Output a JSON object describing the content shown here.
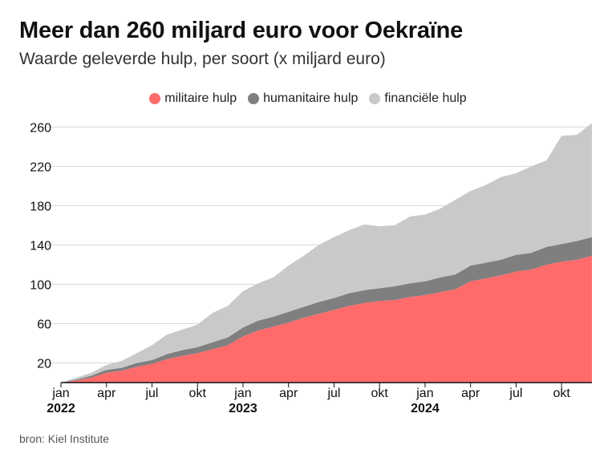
{
  "title": "Meer dan 260 miljard euro voor Oekraïne",
  "subtitle": "Waarde geleverde hulp, per soort (x miljard euro)",
  "source": "bron: Kiel Institute",
  "colors": {
    "militaire": "#ff6b6b",
    "humanitaire": "#7f7f7f",
    "financiele": "#c9c9c9",
    "grid": "#d9d9d9",
    "axis": "#111111"
  },
  "chart_data": {
    "type": "area",
    "stacked": true,
    "legend_position": "top-center",
    "grid": true,
    "y_ticks": [
      20,
      60,
      100,
      140,
      180,
      220,
      260
    ],
    "ylim": [
      0,
      275
    ],
    "x_ticks": [
      {
        "label": "jan",
        "year": "2022",
        "x": 0
      },
      {
        "label": "apr",
        "year": "",
        "x": 3
      },
      {
        "label": "jul",
        "year": "",
        "x": 6
      },
      {
        "label": "okt",
        "year": "",
        "x": 9
      },
      {
        "label": "jan",
        "year": "2023",
        "x": 12
      },
      {
        "label": "apr",
        "year": "",
        "x": 15
      },
      {
        "label": "jul",
        "year": "",
        "x": 18
      },
      {
        "label": "okt",
        "year": "",
        "x": 21
      },
      {
        "label": "jan",
        "year": "2024",
        "x": 24
      },
      {
        "label": "apr",
        "year": "",
        "x": 27
      },
      {
        "label": "jul",
        "year": "",
        "x": 30
      },
      {
        "label": "okt",
        "year": "",
        "x": 33
      }
    ],
    "x": [
      0,
      1,
      2,
      3,
      4,
      5,
      6,
      7,
      8,
      9,
      10,
      11,
      12,
      13,
      14,
      15,
      16,
      17,
      18,
      19,
      20,
      21,
      22,
      23,
      24,
      25,
      26,
      27,
      28,
      29,
      30,
      31,
      32,
      33,
      34,
      35
    ],
    "series": [
      {
        "name": "militaire hulp",
        "key": "militaire",
        "values": [
          0,
          2,
          5,
          10,
          12,
          16,
          19,
          24,
          27,
          30,
          34,
          38,
          47,
          53,
          57,
          61,
          66,
          70,
          74,
          78,
          81,
          83,
          84,
          87,
          89,
          92,
          95,
          103,
          106,
          109,
          113,
          115,
          120,
          123,
          125,
          129
        ]
      },
      {
        "name": "humanitaire hulp",
        "key": "humanitaire",
        "values": [
          0,
          1,
          2,
          3,
          3,
          4,
          4,
          5,
          6,
          6,
          7,
          8,
          9,
          10,
          10,
          11,
          11,
          12,
          12,
          13,
          13,
          13,
          14,
          14,
          14,
          15,
          15,
          16,
          16,
          16,
          17,
          17,
          18,
          18,
          19,
          19
        ]
      },
      {
        "name": "financiële hulp",
        "key": "financiele",
        "values": [
          0,
          2,
          3,
          5,
          7,
          10,
          15,
          20,
          21,
          23,
          30,
          32,
          37,
          38,
          40,
          47,
          52,
          58,
          62,
          64,
          67,
          63,
          62,
          68,
          68,
          70,
          76,
          76,
          79,
          84,
          83,
          88,
          88,
          110,
          108,
          116
        ]
      }
    ]
  }
}
